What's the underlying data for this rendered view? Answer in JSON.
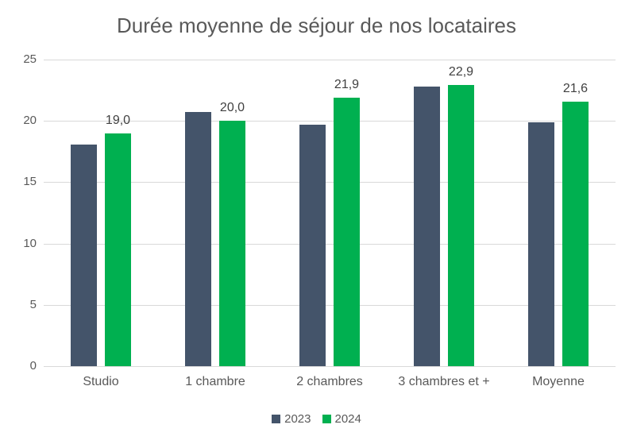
{
  "chart_data": {
    "type": "bar",
    "title": "Durée moyenne de séjour de nos locataires",
    "categories": [
      "Studio",
      "1 chambre",
      "2 chambres",
      "3 chambres et +",
      "Moyenne"
    ],
    "series": [
      {
        "name": "2023",
        "color": "#44546A",
        "values": [
          18.1,
          20.7,
          19.7,
          22.8,
          19.9
        ],
        "data_labels": null
      },
      {
        "name": "2024",
        "color": "#00B050",
        "values": [
          19.0,
          20.0,
          21.9,
          22.9,
          21.6
        ],
        "data_labels": [
          "19,0",
          "20,0",
          "21,9",
          "22,9",
          "21,6"
        ]
      }
    ],
    "ylim": [
      0,
      25
    ],
    "yticks": [
      0,
      5,
      10,
      15,
      20,
      25
    ],
    "ytick_labels": [
      "0",
      "5",
      "10",
      "15",
      "20",
      "25"
    ],
    "grid": true,
    "legend_position": "bottom"
  },
  "colors": {
    "background": "#FFFFFF",
    "gridline": "#D9D9D9",
    "axis_line": "#D9D9D9",
    "title_text": "#595959",
    "axis_text": "#595959",
    "data_label_text": "#404040"
  }
}
